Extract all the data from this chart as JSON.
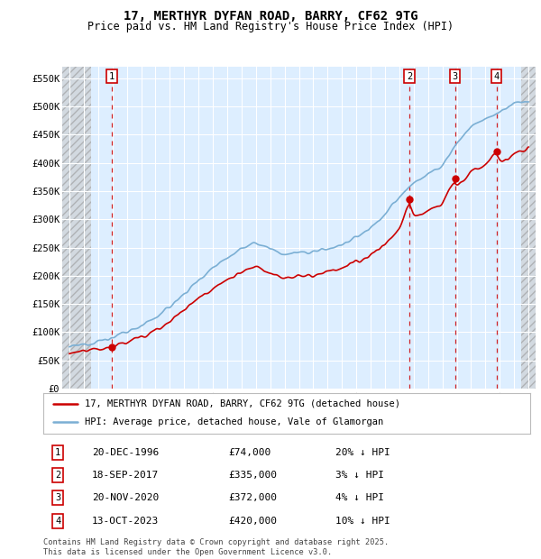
{
  "title": "17, MERTHYR DYFAN ROAD, BARRY, CF62 9TG",
  "subtitle": "Price paid vs. HM Land Registry's House Price Index (HPI)",
  "hpi_color": "#7bafd4",
  "price_color": "#cc0000",
  "transactions": [
    {
      "num": 1,
      "date_str": "20-DEC-1996",
      "date_x": 1996.97,
      "price": 74000,
      "hpi_pct": "20% ↓ HPI"
    },
    {
      "num": 2,
      "date_str": "18-SEP-2017",
      "date_x": 2017.71,
      "price": 335000,
      "hpi_pct": "3% ↓ HPI"
    },
    {
      "num": 3,
      "date_str": "20-NOV-2020",
      "date_x": 2020.89,
      "price": 372000,
      "hpi_pct": "4% ↓ HPI"
    },
    {
      "num": 4,
      "date_str": "13-OCT-2023",
      "date_x": 2023.78,
      "price": 420000,
      "hpi_pct": "10% ↓ HPI"
    }
  ],
  "ylim": [
    0,
    570000
  ],
  "xlim": [
    1993.5,
    2026.5
  ],
  "yticks": [
    0,
    50000,
    100000,
    150000,
    200000,
    250000,
    300000,
    350000,
    400000,
    450000,
    500000,
    550000
  ],
  "legend_label_price": "17, MERTHYR DYFAN ROAD, BARRY, CF62 9TG (detached house)",
  "legend_label_hpi": "HPI: Average price, detached house, Vale of Glamorgan",
  "footer": "Contains HM Land Registry data © Crown copyright and database right 2025.\nThis data is licensed under the Open Government Licence v3.0.",
  "background_chart": "#ddeeff",
  "grid_color": "#ffffff",
  "vline_color": "#cc0000",
  "hatch_until": 1995.5
}
